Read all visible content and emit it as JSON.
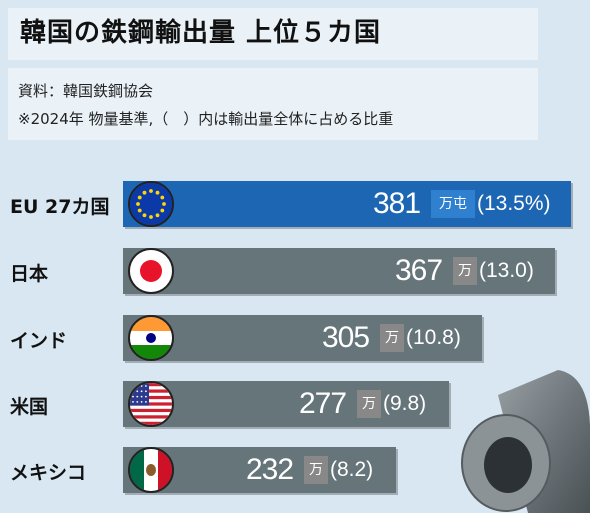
{
  "header": {
    "title": "韓国の鉄鋼輸出量 上位５カ国",
    "source": "資料：韓国鉄鋼協会",
    "note": "※2024年 物量基準,（　）内は輸出量全体に占める比重"
  },
  "colors": {
    "highlight_bar": "#1c66b3",
    "bar": "#66757a",
    "unit_box": "#888888",
    "background": "#d8e7f2"
  },
  "chart_data": {
    "type": "bar",
    "orientation": "horizontal",
    "categories": [
      "EU 27カ国",
      "日本",
      "インド",
      "米国",
      "メキシコ"
    ],
    "values": [
      381,
      367,
      305,
      277,
      232
    ],
    "value_labels": [
      "381",
      "367",
      "305",
      "277",
      "232"
    ],
    "units": [
      "万屯",
      "万",
      "万",
      "万",
      "万"
    ],
    "shares": [
      "(13.5%)",
      "(13.0)",
      "(10.8)",
      "(9.8)",
      "(8.2)"
    ],
    "flags": [
      "eu-flag-icon",
      "japan-flag-icon",
      "india-flag-icon",
      "usa-flag-icon",
      "mexico-flag-icon"
    ],
    "title": "韓国の鉄鋼輸出量 上位５カ国"
  }
}
